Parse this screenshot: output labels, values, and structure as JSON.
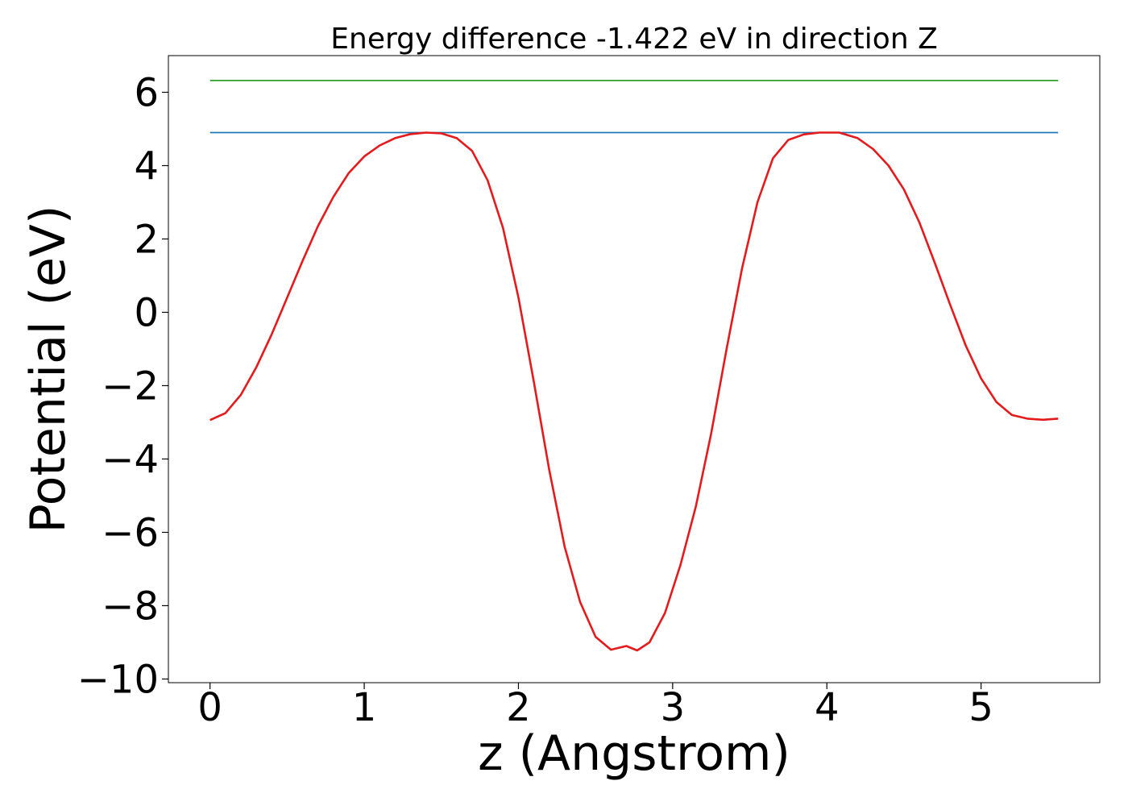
{
  "chart_data": {
    "type": "line",
    "title": "Energy difference -1.422 eV in direction Z",
    "xlabel": "z (Angstrom)",
    "ylabel": "Potential (eV)",
    "xlim": [
      -0.27,
      5.77
    ],
    "ylim": [
      -10.1,
      7.0
    ],
    "xticks": [
      0,
      1,
      2,
      3,
      4,
      5
    ],
    "yticks": [
      -10,
      -8,
      -6,
      -4,
      -2,
      0,
      2,
      4,
      6
    ],
    "xtick_labels": [
      "0",
      "1",
      "2",
      "3",
      "4",
      "5"
    ],
    "ytick_labels": [
      "−10",
      "−8",
      "−6",
      "−4",
      "−2",
      "0",
      "2",
      "4",
      "6"
    ],
    "grid": false,
    "series": [
      {
        "color": "#2ca02c",
        "x": [
          0.0,
          5.5
        ],
        "y": [
          6.32,
          6.32
        ]
      },
      {
        "color": "#1f77b4",
        "x": [
          0.0,
          5.5
        ],
        "y": [
          4.9,
          4.9
        ]
      },
      {
        "color": "#e41a1c",
        "x": [
          0.0,
          0.1,
          0.2,
          0.3,
          0.4,
          0.5,
          0.6,
          0.7,
          0.8,
          0.9,
          1.0,
          1.1,
          1.2,
          1.3,
          1.4,
          1.5,
          1.6,
          1.7,
          1.8,
          1.9,
          2.0,
          2.1,
          2.2,
          2.3,
          2.4,
          2.5,
          2.6,
          2.7,
          2.77,
          2.85,
          2.95,
          3.05,
          3.15,
          3.25,
          3.35,
          3.45,
          3.55,
          3.65,
          3.75,
          3.85,
          3.95,
          4.08,
          4.2,
          4.3,
          4.4,
          4.5,
          4.6,
          4.7,
          4.8,
          4.9,
          5.0,
          5.1,
          5.2,
          5.3,
          5.4,
          5.5
        ],
        "y": [
          -2.94,
          -2.75,
          -2.25,
          -1.5,
          -0.6,
          0.4,
          1.4,
          2.35,
          3.15,
          3.8,
          4.25,
          4.55,
          4.75,
          4.86,
          4.9,
          4.88,
          4.75,
          4.4,
          3.6,
          2.3,
          0.4,
          -1.9,
          -4.3,
          -6.4,
          -7.9,
          -8.85,
          -9.2,
          -9.1,
          -9.22,
          -9.0,
          -8.2,
          -6.9,
          -5.3,
          -3.3,
          -1.0,
          1.2,
          3.0,
          4.2,
          4.7,
          4.85,
          4.9,
          4.9,
          4.75,
          4.45,
          4.0,
          3.35,
          2.45,
          1.35,
          0.2,
          -0.9,
          -1.8,
          -2.45,
          -2.8,
          -2.9,
          -2.93,
          -2.9
        ]
      }
    ]
  }
}
